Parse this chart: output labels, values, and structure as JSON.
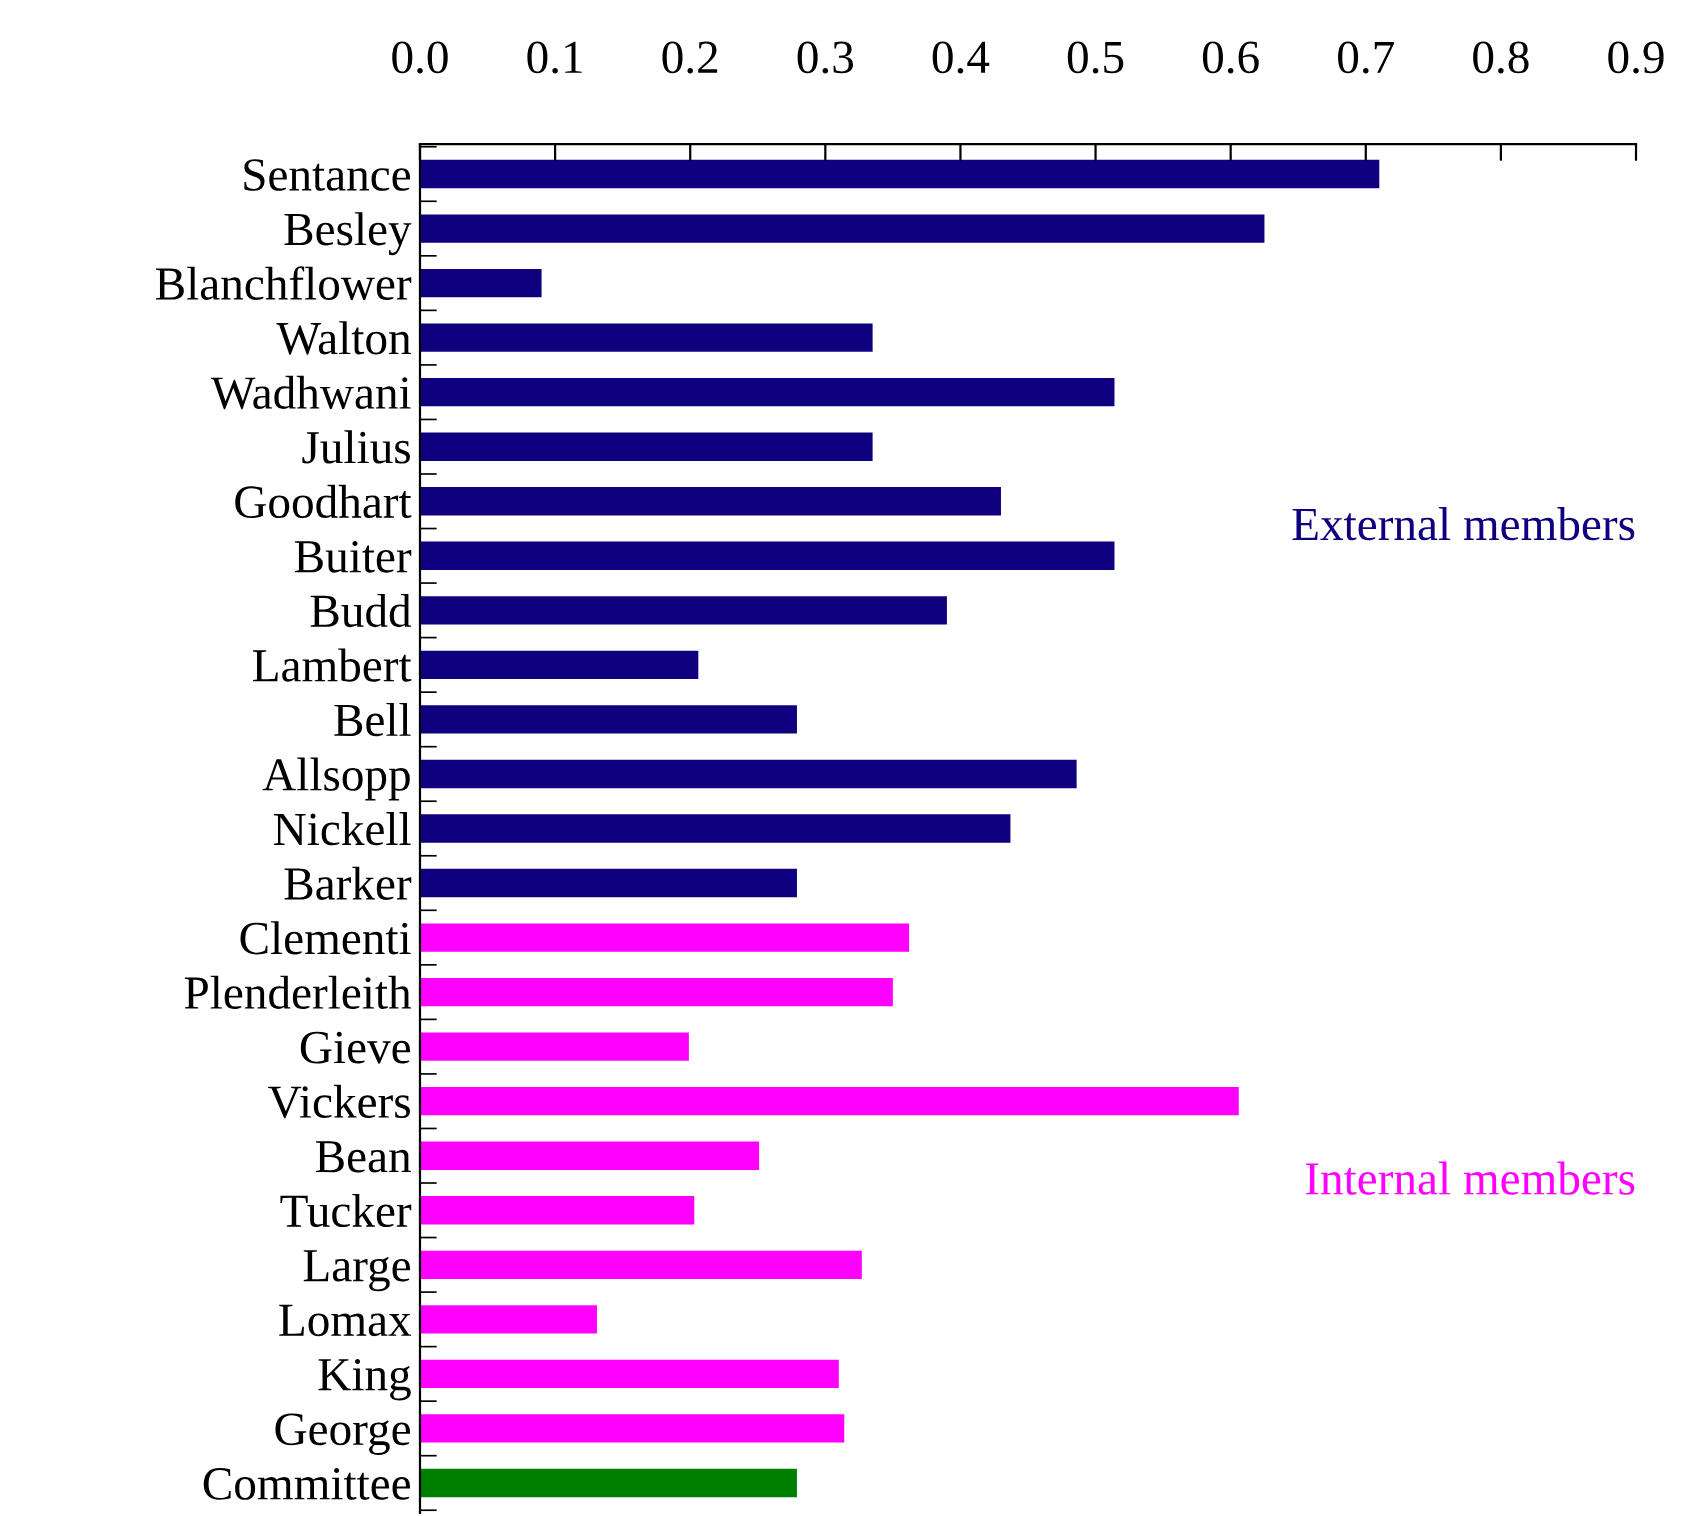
{
  "chart_data": {
    "type": "bar",
    "orientation": "horizontal",
    "categories": [
      "Sentance",
      "Besley",
      "Blanchflower",
      "Walton",
      "Wadhwani",
      "Julius",
      "Goodhart",
      "Buiter",
      "Budd",
      "Lambert",
      "Bell",
      "Allsopp",
      "Nickell",
      "Barker",
      "Clementi",
      "Plenderleith",
      "Gieve",
      "Vickers",
      "Bean",
      "Tucker",
      "Large",
      "Lomax",
      "King",
      "George",
      "Committee"
    ],
    "series": [
      {
        "name": "External members",
        "color": "#0f007f",
        "values": [
          0.71,
          0.625,
          0.09,
          0.335,
          0.514,
          0.335,
          0.43,
          0.514,
          0.39,
          0.206,
          0.279,
          0.486,
          0.437,
          0.279,
          null,
          null,
          null,
          null,
          null,
          null,
          null,
          null,
          null,
          null,
          null
        ]
      },
      {
        "name": "Internal members",
        "color": "#ff00ff",
        "values": [
          null,
          null,
          null,
          null,
          null,
          null,
          null,
          null,
          null,
          null,
          null,
          null,
          null,
          null,
          0.362,
          0.35,
          0.199,
          0.606,
          0.251,
          0.203,
          0.327,
          0.131,
          0.31,
          0.314,
          null
        ]
      },
      {
        "color": "#008000",
        "values": [
          null,
          null,
          null,
          null,
          null,
          null,
          null,
          null,
          null,
          null,
          null,
          null,
          null,
          null,
          null,
          null,
          null,
          null,
          null,
          null,
          null,
          null,
          null,
          null,
          0.279
        ]
      }
    ],
    "xlim": [
      0,
      0.9
    ],
    "xticks": [
      {
        "value": 0,
        "label": "0.0"
      },
      0.1,
      0.2,
      0.3,
      0.4,
      0.5,
      0.6,
      0.7,
      0.8,
      0.9
    ],
    "grid": false,
    "legend": false
  }
}
